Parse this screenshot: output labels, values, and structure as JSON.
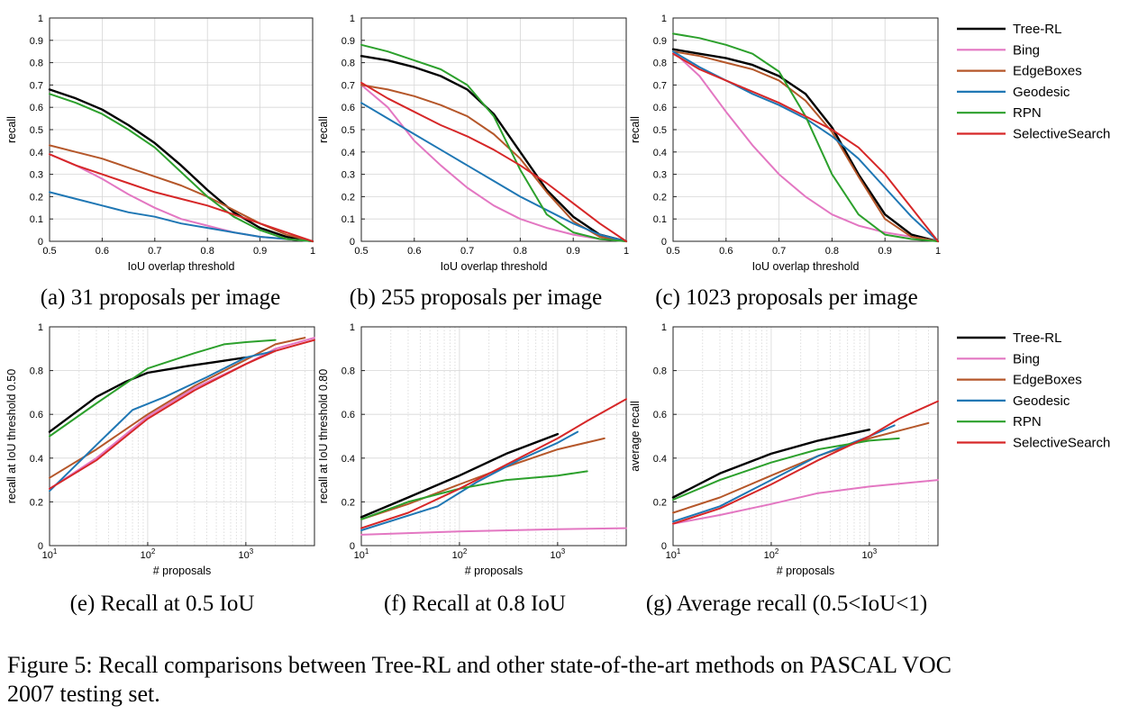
{
  "colors": {
    "Tree-RL": "#000000",
    "Bing": "#e377c2",
    "EdgeBoxes": "#b5572a",
    "Geodesic": "#1f77b4",
    "RPN": "#2ca02c",
    "SelectiveSearch": "#d62728"
  },
  "legend_names": [
    "Tree-RL",
    "Bing",
    "EdgeBoxes",
    "Geodesic",
    "RPN",
    "SelectiveSearch"
  ],
  "subcaptions": [
    "(a) 31 proposals per image",
    "(b) 255 proposals per image",
    "(c) 1023 proposals per image",
    "(e) Recall at 0.5 IoU",
    "(f) Recall at 0.8 IoU",
    "(g) Average recall (0.5<IoU<1)"
  ],
  "figure_caption": {
    "line1": "Figure 5: Recall comparisons between Tree-RL and other state-of-the-art methods on PASCAL VOC",
    "line2": "2007 testing set."
  },
  "chart_data": [
    {
      "type": "line",
      "xlabel": "IoU overlap threshold",
      "ylabel": "recall",
      "xscale": "linear",
      "xlim": [
        0.5,
        1
      ],
      "ylim": [
        0,
        1
      ],
      "xticks": [
        0.5,
        0.6,
        0.7,
        0.8,
        0.9,
        1
      ],
      "xticklabels": [
        "0.5",
        "0.6",
        "0.7",
        "0.8",
        "0.9",
        "1"
      ],
      "yticks": [
        0,
        0.1,
        0.2,
        0.3,
        0.4,
        0.5,
        0.6,
        0.7,
        0.8,
        0.9,
        1
      ],
      "yticklabels": [
        "0",
        "0.1",
        "0.2",
        "0.3",
        "0.4",
        "0.5",
        "0.6",
        "0.7",
        "0.8",
        "0.9",
        "1"
      ],
      "grid": true,
      "x": [
        0.5,
        0.55,
        0.6,
        0.65,
        0.7,
        0.75,
        0.8,
        0.85,
        0.9,
        0.95,
        1.0
      ],
      "series": [
        {
          "name": "Tree-RL",
          "values": [
            0.68,
            0.64,
            0.59,
            0.52,
            0.44,
            0.34,
            0.23,
            0.13,
            0.06,
            0.02,
            0.0
          ]
        },
        {
          "name": "Bing",
          "values": [
            0.39,
            0.34,
            0.28,
            0.21,
            0.15,
            0.1,
            0.07,
            0.04,
            0.02,
            0.01,
            0.0
          ]
        },
        {
          "name": "EdgeBoxes",
          "values": [
            0.43,
            0.4,
            0.37,
            0.33,
            0.29,
            0.25,
            0.2,
            0.14,
            0.08,
            0.03,
            0.0
          ]
        },
        {
          "name": "Geodesic",
          "values": [
            0.22,
            0.19,
            0.16,
            0.13,
            0.11,
            0.08,
            0.06,
            0.04,
            0.02,
            0.01,
            0.0
          ]
        },
        {
          "name": "RPN",
          "values": [
            0.66,
            0.62,
            0.57,
            0.5,
            0.42,
            0.31,
            0.2,
            0.11,
            0.05,
            0.01,
            0.0
          ]
        },
        {
          "name": "SelectiveSearch",
          "values": [
            0.39,
            0.34,
            0.3,
            0.26,
            0.22,
            0.19,
            0.16,
            0.12,
            0.08,
            0.04,
            0.0
          ]
        }
      ]
    },
    {
      "type": "line",
      "xlabel": "IoU overlap threshold",
      "ylabel": "recall",
      "xscale": "linear",
      "xlim": [
        0.5,
        1
      ],
      "ylim": [
        0,
        1
      ],
      "xticks": [
        0.5,
        0.6,
        0.7,
        0.8,
        0.9,
        1
      ],
      "xticklabels": [
        "0.5",
        "0.6",
        "0.7",
        "0.8",
        "0.9",
        "1"
      ],
      "yticks": [
        0,
        0.1,
        0.2,
        0.3,
        0.4,
        0.5,
        0.6,
        0.7,
        0.8,
        0.9,
        1
      ],
      "yticklabels": [
        "0",
        "0.1",
        "0.2",
        "0.3",
        "0.4",
        "0.5",
        "0.6",
        "0.7",
        "0.8",
        "0.9",
        "1"
      ],
      "grid": true,
      "x": [
        0.5,
        0.55,
        0.6,
        0.65,
        0.7,
        0.75,
        0.8,
        0.85,
        0.9,
        0.95,
        1.0
      ],
      "series": [
        {
          "name": "Tree-RL",
          "values": [
            0.83,
            0.81,
            0.78,
            0.74,
            0.68,
            0.57,
            0.4,
            0.23,
            0.11,
            0.03,
            0.0
          ]
        },
        {
          "name": "Bing",
          "values": [
            0.7,
            0.6,
            0.45,
            0.34,
            0.24,
            0.16,
            0.1,
            0.06,
            0.03,
            0.01,
            0.0
          ]
        },
        {
          "name": "EdgeBoxes",
          "values": [
            0.7,
            0.68,
            0.65,
            0.61,
            0.56,
            0.48,
            0.37,
            0.22,
            0.09,
            0.02,
            0.0
          ]
        },
        {
          "name": "Geodesic",
          "values": [
            0.62,
            0.55,
            0.48,
            0.41,
            0.34,
            0.27,
            0.2,
            0.14,
            0.08,
            0.03,
            0.0
          ]
        },
        {
          "name": "RPN",
          "values": [
            0.88,
            0.85,
            0.81,
            0.77,
            0.7,
            0.56,
            0.32,
            0.12,
            0.04,
            0.01,
            0.0
          ]
        },
        {
          "name": "SelectiveSearch",
          "values": [
            0.71,
            0.64,
            0.58,
            0.52,
            0.47,
            0.41,
            0.34,
            0.26,
            0.17,
            0.08,
            0.0
          ]
        }
      ]
    },
    {
      "type": "line",
      "xlabel": "IoU overlap threshold",
      "ylabel": "recall",
      "xscale": "linear",
      "xlim": [
        0.5,
        1
      ],
      "ylim": [
        0,
        1
      ],
      "xticks": [
        0.5,
        0.6,
        0.7,
        0.8,
        0.9,
        1
      ],
      "xticklabels": [
        "0.5",
        "0.6",
        "0.7",
        "0.8",
        "0.9",
        "1"
      ],
      "yticks": [
        0,
        0.1,
        0.2,
        0.3,
        0.4,
        0.5,
        0.6,
        0.7,
        0.8,
        0.9,
        1
      ],
      "yticklabels": [
        "0",
        "0.1",
        "0.2",
        "0.3",
        "0.4",
        "0.5",
        "0.6",
        "0.7",
        "0.8",
        "0.9",
        "1"
      ],
      "grid": true,
      "x": [
        0.5,
        0.55,
        0.6,
        0.65,
        0.7,
        0.75,
        0.8,
        0.85,
        0.9,
        0.95,
        1.0
      ],
      "series": [
        {
          "name": "Tree-RL",
          "values": [
            0.86,
            0.84,
            0.82,
            0.79,
            0.74,
            0.66,
            0.51,
            0.3,
            0.12,
            0.03,
            0.0
          ]
        },
        {
          "name": "Bing",
          "values": [
            0.85,
            0.74,
            0.58,
            0.43,
            0.3,
            0.2,
            0.12,
            0.07,
            0.04,
            0.02,
            0.0
          ]
        },
        {
          "name": "EdgeBoxes",
          "values": [
            0.85,
            0.83,
            0.8,
            0.77,
            0.72,
            0.63,
            0.49,
            0.29,
            0.1,
            0.02,
            0.0
          ]
        },
        {
          "name": "Geodesic",
          "values": [
            0.85,
            0.78,
            0.72,
            0.66,
            0.61,
            0.55,
            0.47,
            0.37,
            0.24,
            0.11,
            0.0
          ]
        },
        {
          "name": "RPN",
          "values": [
            0.93,
            0.91,
            0.88,
            0.84,
            0.76,
            0.56,
            0.3,
            0.12,
            0.03,
            0.01,
            0.0
          ]
        },
        {
          "name": "SelectiveSearch",
          "values": [
            0.84,
            0.77,
            0.72,
            0.67,
            0.62,
            0.56,
            0.5,
            0.42,
            0.3,
            0.15,
            0.0
          ]
        }
      ]
    },
    {
      "type": "line",
      "xlabel": "# proposals",
      "ylabel": "recall at IoU threshold 0.50",
      "xscale": "log",
      "xlim": [
        10,
        5000
      ],
      "ylim": [
        0,
        1
      ],
      "xticks": [
        10,
        100,
        1000
      ],
      "xticklabels": [
        "10^1",
        "10^2",
        "10^3"
      ],
      "yticks": [
        0,
        0.2,
        0.4,
        0.6,
        0.8,
        1
      ],
      "yticklabels": [
        "0",
        "0.2",
        "0.4",
        "0.6",
        "0.8",
        "1"
      ],
      "grid": true,
      "series": [
        {
          "name": "Tree-RL",
          "x": [
            10,
            30,
            60,
            100,
            250,
            500,
            1000
          ],
          "values": [
            0.52,
            0.68,
            0.75,
            0.79,
            0.82,
            0.84,
            0.86
          ]
        },
        {
          "name": "Bing",
          "x": [
            10,
            30,
            100,
            300,
            1000,
            2000,
            5000
          ],
          "values": [
            0.26,
            0.4,
            0.59,
            0.72,
            0.83,
            0.9,
            0.95
          ]
        },
        {
          "name": "EdgeBoxes",
          "x": [
            10,
            30,
            100,
            300,
            1000,
            2000,
            4000
          ],
          "values": [
            0.31,
            0.44,
            0.6,
            0.73,
            0.85,
            0.92,
            0.95
          ]
        },
        {
          "name": "Geodesic",
          "x": [
            10,
            30,
            70,
            150,
            400,
            1000,
            2000
          ],
          "values": [
            0.25,
            0.46,
            0.62,
            0.68,
            0.77,
            0.86,
            0.89
          ]
        },
        {
          "name": "RPN",
          "x": [
            10,
            30,
            100,
            300,
            600,
            1000,
            2000
          ],
          "values": [
            0.5,
            0.65,
            0.81,
            0.88,
            0.92,
            0.93,
            0.94
          ]
        },
        {
          "name": "SelectiveSearch",
          "x": [
            10,
            30,
            100,
            300,
            1000,
            2000,
            5000
          ],
          "values": [
            0.26,
            0.39,
            0.58,
            0.71,
            0.83,
            0.89,
            0.94
          ]
        }
      ]
    },
    {
      "type": "line",
      "xlabel": "# proposals",
      "ylabel": "recall at IoU threshold 0.80",
      "xscale": "log",
      "xlim": [
        10,
        5000
      ],
      "ylim": [
        0,
        1
      ],
      "xticks": [
        10,
        100,
        1000
      ],
      "xticklabels": [
        "10^1",
        "10^2",
        "10^3"
      ],
      "yticks": [
        0,
        0.2,
        0.4,
        0.6,
        0.8,
        1
      ],
      "yticklabels": [
        "0",
        "0.2",
        "0.4",
        "0.6",
        "0.8",
        "1"
      ],
      "grid": true,
      "series": [
        {
          "name": "Tree-RL",
          "x": [
            10,
            30,
            100,
            300,
            1000
          ],
          "values": [
            0.13,
            0.22,
            0.32,
            0.42,
            0.51
          ]
        },
        {
          "name": "Bing",
          "x": [
            10,
            100,
            1000,
            5000
          ],
          "values": [
            0.05,
            0.065,
            0.075,
            0.08
          ]
        },
        {
          "name": "EdgeBoxes",
          "x": [
            10,
            30,
            100,
            300,
            1000,
            3000
          ],
          "values": [
            0.12,
            0.19,
            0.28,
            0.36,
            0.44,
            0.49
          ]
        },
        {
          "name": "Geodesic",
          "x": [
            10,
            60,
            150,
            400,
            1000,
            1600
          ],
          "values": [
            0.07,
            0.18,
            0.29,
            0.39,
            0.47,
            0.52
          ]
        },
        {
          "name": "RPN",
          "x": [
            10,
            30,
            100,
            300,
            1000,
            2000
          ],
          "values": [
            0.12,
            0.2,
            0.26,
            0.3,
            0.32,
            0.34
          ]
        },
        {
          "name": "SelectiveSearch",
          "x": [
            10,
            30,
            100,
            300,
            1000,
            2000,
            5000
          ],
          "values": [
            0.08,
            0.15,
            0.26,
            0.37,
            0.49,
            0.57,
            0.67
          ]
        }
      ]
    },
    {
      "type": "line",
      "xlabel": "# proposals",
      "ylabel": "average recall",
      "xscale": "log",
      "xlim": [
        10,
        5000
      ],
      "ylim": [
        0,
        1
      ],
      "xticks": [
        10,
        100,
        1000
      ],
      "xticklabels": [
        "10^1",
        "10^2",
        "10^3"
      ],
      "yticks": [
        0,
        0.2,
        0.4,
        0.6,
        0.8,
        1
      ],
      "yticklabels": [
        "0",
        "0.2",
        "0.4",
        "0.6",
        "0.8",
        "1"
      ],
      "grid": true,
      "series": [
        {
          "name": "Tree-RL",
          "x": [
            10,
            30,
            100,
            300,
            1000
          ],
          "values": [
            0.22,
            0.33,
            0.42,
            0.48,
            0.53
          ]
        },
        {
          "name": "Bing",
          "x": [
            10,
            30,
            100,
            300,
            1000,
            5000
          ],
          "values": [
            0.1,
            0.14,
            0.19,
            0.24,
            0.27,
            0.3
          ]
        },
        {
          "name": "EdgeBoxes",
          "x": [
            10,
            30,
            100,
            300,
            1000,
            4000
          ],
          "values": [
            0.15,
            0.22,
            0.32,
            0.41,
            0.49,
            0.56
          ]
        },
        {
          "name": "Geodesic",
          "x": [
            10,
            30,
            100,
            300,
            1000,
            1800
          ],
          "values": [
            0.11,
            0.18,
            0.3,
            0.41,
            0.5,
            0.55
          ]
        },
        {
          "name": "RPN",
          "x": [
            10,
            30,
            100,
            300,
            1000,
            2000
          ],
          "values": [
            0.21,
            0.3,
            0.38,
            0.44,
            0.48,
            0.49
          ]
        },
        {
          "name": "SelectiveSearch",
          "x": [
            10,
            30,
            100,
            300,
            1000,
            2000,
            5000
          ],
          "values": [
            0.1,
            0.17,
            0.28,
            0.39,
            0.5,
            0.58,
            0.66
          ]
        }
      ]
    }
  ]
}
